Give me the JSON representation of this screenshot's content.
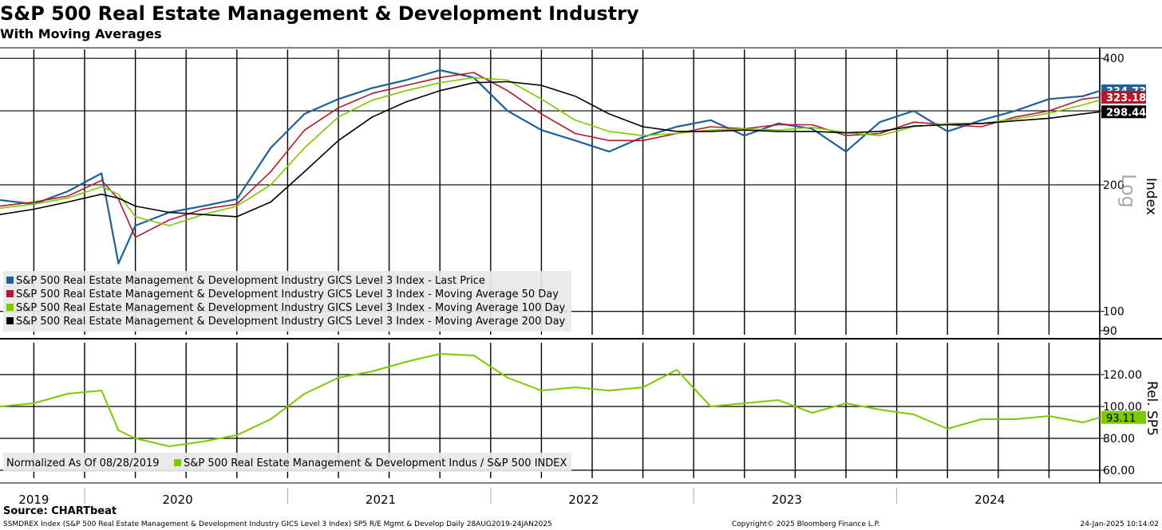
{
  "header": {
    "title": "S&P 500 Real Estate Management & Development Industry",
    "subtitle": "With Moving Averages"
  },
  "footer": {
    "source": "Source: CHARTbeat",
    "description": "SSMDREX Index (S&P 500 Real Estate Management & Development Industry GICS Level 3 Index) SP5 R/E Mgmt & Develop  Daily 28AUG2019-24JAN2025",
    "copyright": "Copyright© 2025 Bloomberg Finance L.P.",
    "timestamp": "24-Jan-2025 10:14:02"
  },
  "colors": {
    "last_price": "#1f5f9c",
    "ma50": "#b2182b",
    "ma100": "#7cc900",
    "ma200": "#000000",
    "relative": "#7cc900"
  },
  "chart_data": [
    {
      "type": "line",
      "title": "S&P 500 Real Estate Management & Development Industry",
      "subtitle": "With Moving Averages",
      "ylabel": "Index",
      "yscale_label": "Log",
      "ylim": [
        88,
        420
      ],
      "yticks": [
        400,
        200,
        100,
        90
      ],
      "grid": true,
      "legend_position": "bottom-left",
      "x": [
        "2019-08",
        "2019-10",
        "2019-12",
        "2020-02",
        "2020-03",
        "2020-04",
        "2020-06",
        "2020-08",
        "2020-10",
        "2020-12",
        "2021-02",
        "2021-04",
        "2021-06",
        "2021-08",
        "2021-10",
        "2021-12",
        "2022-02",
        "2022-04",
        "2022-06",
        "2022-08",
        "2022-10",
        "2022-12",
        "2023-02",
        "2023-04",
        "2023-06",
        "2023-08",
        "2023-10",
        "2023-12",
        "2024-02",
        "2024-04",
        "2024-06",
        "2024-08",
        "2024-10",
        "2024-12",
        "2025-01"
      ],
      "series": [
        {
          "name": "S&P 500 Real Estate Management & Development Industry GICS Level 3 Index - Last Price",
          "color": "#1f5f9c",
          "values": [
            184,
            180,
            193,
            213,
            130,
            160,
            172,
            178,
            185,
            245,
            295,
            320,
            340,
            355,
            375,
            360,
            300,
            270,
            255,
            240,
            260,
            275,
            285,
            262,
            280,
            272,
            240,
            282,
            300,
            268,
            285,
            300,
            320,
            325,
            334.73
          ]
        },
        {
          "name": "S&P 500 Real Estate Management & Development Industry GICS Level 3 Index - Moving Average 50 Day",
          "color": "#b2182b",
          "values": [
            178,
            182,
            188,
            205,
            185,
            150,
            165,
            175,
            180,
            215,
            270,
            305,
            330,
            345,
            360,
            370,
            335,
            295,
            265,
            255,
            255,
            265,
            275,
            272,
            278,
            278,
            262,
            265,
            282,
            278,
            275,
            290,
            300,
            320,
            323.18
          ]
        },
        {
          "name": "S&P 500 Real Estate Management & Development Industry GICS Level 3 Index - Moving Average 100 Day",
          "color": "#7cc900",
          "values": [
            176,
            180,
            186,
            198,
            190,
            168,
            160,
            170,
            178,
            200,
            245,
            290,
            318,
            335,
            350,
            360,
            355,
            320,
            285,
            268,
            262,
            265,
            270,
            272,
            270,
            274,
            266,
            262,
            275,
            280,
            280,
            287,
            296,
            310,
            318
          ]
        },
        {
          "name": "S&P 500 Real Estate Management & Development Industry GICS Level 3 Index - Moving Average 200 Day",
          "color": "#000000",
          "values": [
            170,
            175,
            182,
            190,
            186,
            178,
            172,
            170,
            168,
            182,
            215,
            255,
            290,
            315,
            335,
            350,
            352,
            345,
            325,
            295,
            275,
            268,
            268,
            270,
            268,
            268,
            266,
            268,
            276,
            278,
            280,
            284,
            288,
            295,
            298.44
          ]
        }
      ],
      "last_value_labels": [
        "334.73",
        "323.18",
        "298.44"
      ]
    },
    {
      "type": "line",
      "ylabel": "Rel. SP5",
      "ylim": [
        55,
        140
      ],
      "yticks": [
        "120.00",
        "100.00",
        "80.00",
        "60.00"
      ],
      "grid": true,
      "legend_position": "bottom-left",
      "xlabels": [
        "2019",
        "2020",
        "2021",
        "2022",
        "2023",
        "2024"
      ],
      "normalized_note": "Normalized As Of 08/28/2019",
      "x": [
        "2019-08",
        "2019-10",
        "2019-12",
        "2020-02",
        "2020-03",
        "2020-04",
        "2020-06",
        "2020-08",
        "2020-10",
        "2020-12",
        "2021-02",
        "2021-04",
        "2021-06",
        "2021-08",
        "2021-10",
        "2021-12",
        "2022-02",
        "2022-04",
        "2022-06",
        "2022-08",
        "2022-10",
        "2022-12",
        "2023-02",
        "2023-04",
        "2023-06",
        "2023-08",
        "2023-10",
        "2023-12",
        "2024-02",
        "2024-04",
        "2024-06",
        "2024-08",
        "2024-10",
        "2024-12",
        "2025-01"
      ],
      "series": [
        {
          "name": "S&P 500 Real Estate Management & Development Indus / S&P 500 INDEX",
          "color": "#7cc900",
          "values": [
            100,
            102,
            108,
            110,
            85,
            80,
            75,
            78,
            82,
            92,
            108,
            118,
            122,
            128,
            133,
            132,
            118,
            110,
            112,
            110,
            112,
            123,
            100,
            102,
            104,
            96,
            102,
            98,
            95,
            86,
            92,
            92,
            94,
            90,
            93.11
          ]
        }
      ],
      "last_value_label": "93.11"
    }
  ]
}
